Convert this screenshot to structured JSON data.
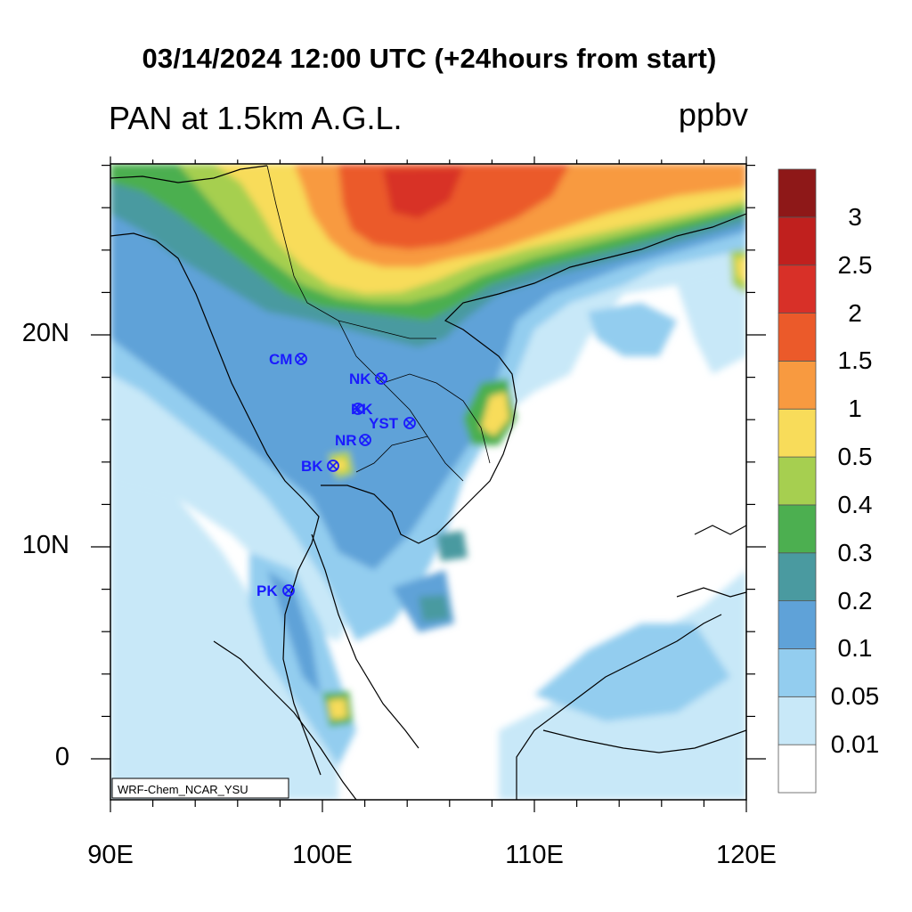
{
  "title": "03/14/2024 12:00 UTC (+24hours from start)",
  "subtitle": "PAN at 1.5km A.G.L.",
  "units": "ppbv",
  "credit": "WRF-Chem_NCAR_YSU",
  "lat_labels": [
    "20N",
    "10N",
    "0"
  ],
  "lon_labels": [
    "90E",
    "100E",
    "110E",
    "120E"
  ],
  "colorbar": {
    "levels": [
      "0.01",
      "0.05",
      "0.1",
      "0.2",
      "0.3",
      "0.4",
      "0.5",
      "1",
      "1.5",
      "2",
      "2.5",
      "3"
    ],
    "colors": [
      "#ffffff",
      "#c8e8f8",
      "#93cdef",
      "#5fa2d8",
      "#4a9aa0",
      "#4caf50",
      "#a6cf50",
      "#f8dc5a",
      "#f89a40",
      "#eb5a2a",
      "#d83028",
      "#c0201e",
      "#8e1818"
    ]
  },
  "stations": [
    {
      "name": "CM"
    },
    {
      "name": "NK"
    },
    {
      "name": "KK"
    },
    {
      "name": "YST"
    },
    {
      "name": "NR"
    },
    {
      "name": "BK"
    },
    {
      "name": "PK"
    }
  ]
}
